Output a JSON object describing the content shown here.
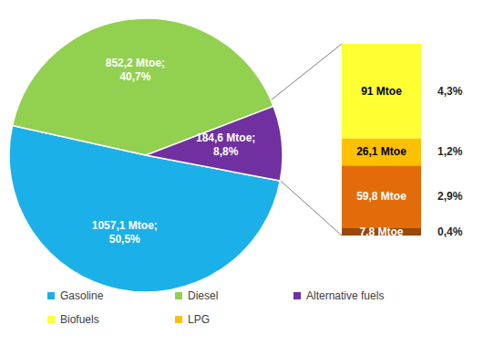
{
  "chart_data": [
    {
      "type": "pie",
      "categories": [
        "Gasoline",
        "Diesel",
        "Alternative fuels"
      ],
      "values": [
        1057.1,
        852.2,
        184.6
      ],
      "value_labels": [
        "1057,1 Mtoe;",
        "852,2 Mtoe;",
        "184,6 Mtoe;"
      ],
      "percents": [
        50.5,
        40.7,
        8.8
      ],
      "percent_labels": [
        "50,5%",
        "40,7%",
        "8,8%"
      ],
      "colors": [
        "#1cb0e8",
        "#92d050",
        "#7030a0"
      ],
      "data_labels": true,
      "legend": "bottom"
    },
    {
      "type": "bar",
      "stacked": true,
      "data_labels": true,
      "tick_labels": false,
      "categories": [
        null
      ],
      "series": [
        {
          "name": "Biofuels",
          "color": "#ffff33",
          "values": [
            91
          ],
          "value_labels": [
            "91 Mtoe"
          ],
          "percents": [
            4.3
          ],
          "percent_labels": [
            "4,3%"
          ]
        },
        {
          "name": "LPG",
          "color": "#ffc000",
          "values": [
            26.1
          ],
          "value_labels": [
            "26,1 Mtoe"
          ],
          "percents": [
            1.2
          ],
          "percent_labels": [
            "1,2%"
          ]
        },
        {
          "name": null,
          "color": "#e36c0a",
          "values": [
            59.8
          ],
          "value_labels": [
            "59,8 Mtoe"
          ],
          "percents": [
            2.9
          ],
          "percent_labels": [
            "2,9%"
          ]
        },
        {
          "name": null,
          "color": "#984807",
          "values": [
            7.8
          ],
          "value_labels": [
            "7,8 Mtoe"
          ],
          "percents": [
            0.4
          ],
          "percent_labels": [
            "0,4%"
          ]
        }
      ]
    }
  ]
}
